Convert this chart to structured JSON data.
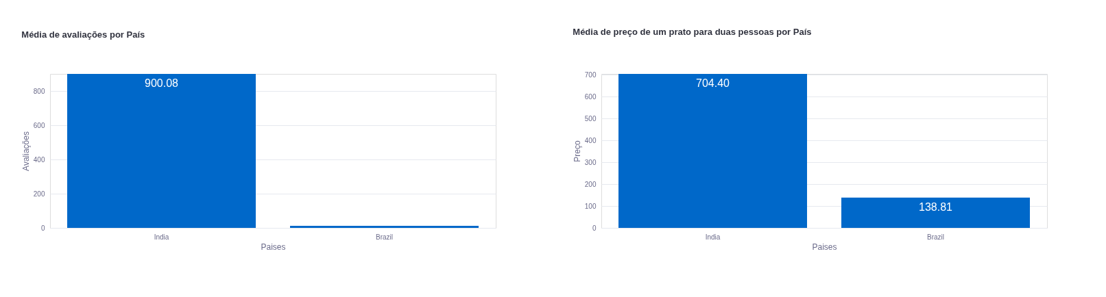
{
  "chart_data": [
    {
      "type": "bar",
      "title": "Média de avaliações por País",
      "xlabel": "Paises",
      "ylabel": "Avaliações",
      "categories": [
        "India",
        "Brazil"
      ],
      "values": [
        900.08,
        12
      ],
      "value_labels": [
        "900.08",
        null
      ],
      "color": "#0068c9",
      "ylim": [
        0,
        900.08
      ],
      "yticks": [
        0,
        200,
        400,
        600,
        800
      ],
      "grid": "y"
    },
    {
      "type": "bar",
      "title": "Média de preço de um prato para duas pessoas por País",
      "xlabel": "Paises",
      "ylabel": "Preço",
      "categories": [
        "India",
        "Brazil"
      ],
      "values": [
        704.4,
        138.81
      ],
      "value_labels": [
        "704.40",
        "138.81"
      ],
      "color": "#0068c9",
      "ylim": [
        0,
        704.4
      ],
      "yticks": [
        0,
        100,
        200,
        300,
        400,
        500,
        600,
        700
      ],
      "grid": "y"
    }
  ]
}
